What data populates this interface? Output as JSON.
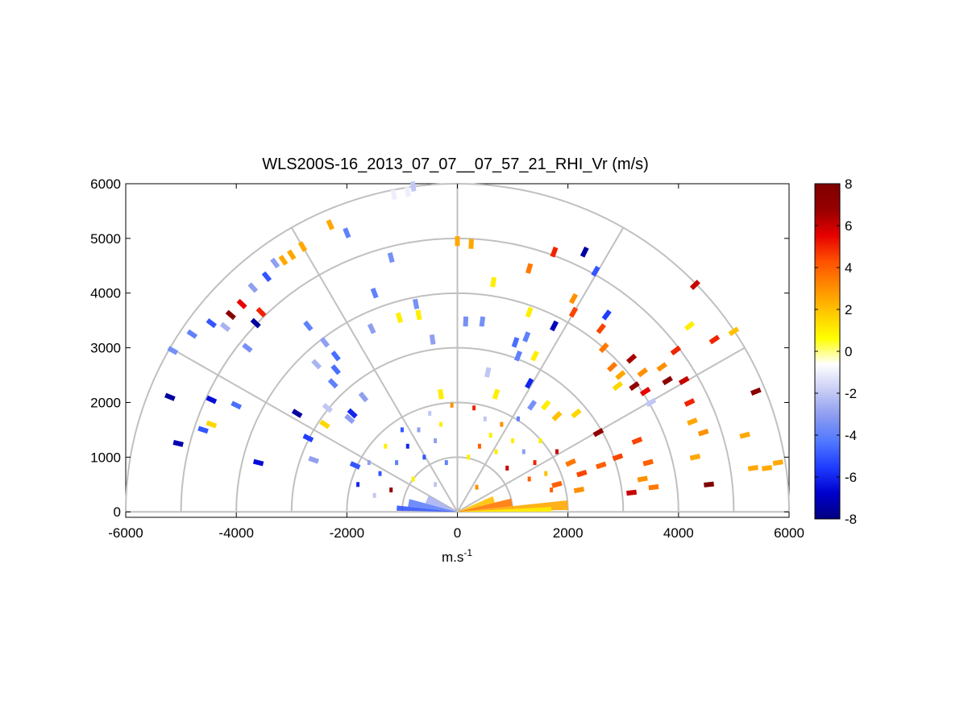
{
  "chart_data": {
    "type": "scatter",
    "title": "WLS200S-16_2013_07_07__07_57_21_RHI_Vr (m/s)",
    "xlabel_base": "m.s",
    "xlabel_sup": "-1",
    "ylabel": "",
    "xlim": [
      -6000,
      6000
    ],
    "ylim": [
      -100,
      6000
    ],
    "xticks": [
      -6000,
      -4000,
      -2000,
      0,
      2000,
      4000,
      6000
    ],
    "yticks": [
      0,
      1000,
      2000,
      3000,
      4000,
      5000,
      6000
    ],
    "range_rings": [
      1000,
      2000,
      3000,
      4000,
      5000,
      6000
    ],
    "radial_angles_deg": [
      0,
      30,
      60,
      90,
      120,
      150,
      180
    ],
    "grid": true,
    "colorbar": {
      "label": "",
      "limits": [
        -8,
        8
      ],
      "ticks": [
        -8,
        -6,
        -4,
        -2,
        0,
        2,
        4,
        6,
        8
      ],
      "colormap": [
        "#000080",
        "#0000cd",
        "#1e3cff",
        "#5078ff",
        "#8c9cf0",
        "#c8cdf5",
        "#ffffff",
        "#ffff00",
        "#ffc800",
        "#ff8c00",
        "#ff5000",
        "#e60000",
        "#960000",
        "#800000"
      ]
    },
    "points": [
      {
        "x": -5200,
        "y": 2100,
        "v": -7.5
      },
      {
        "x": -5050,
        "y": 1250,
        "v": -7.2
      },
      {
        "x": -5150,
        "y": 2950,
        "v": -3.5
      },
      {
        "x": -4800,
        "y": 3250,
        "v": -4.0
      },
      {
        "x": -4450,
        "y": 3450,
        "v": -5.0
      },
      {
        "x": -4100,
        "y": 3600,
        "v": 7.5
      },
      {
        "x": -3900,
        "y": 3800,
        "v": 5.5
      },
      {
        "x": -3700,
        "y": 4100,
        "v": -3.0
      },
      {
        "x": -3550,
        "y": 3650,
        "v": 5.0
      },
      {
        "x": -3450,
        "y": 4300,
        "v": -5.0
      },
      {
        "x": -3300,
        "y": 4550,
        "v": -3.0
      },
      {
        "x": -4200,
        "y": 3380,
        "v": -2.5
      },
      {
        "x": -4450,
        "y": 2050,
        "v": -6.5
      },
      {
        "x": -4000,
        "y": 1950,
        "v": -4.5
      },
      {
        "x": -4600,
        "y": 1500,
        "v": -5.0
      },
      {
        "x": -4450,
        "y": 1600,
        "v": 1.5
      },
      {
        "x": -3650,
        "y": 3450,
        "v": -7.5
      },
      {
        "x": -3800,
        "y": 3000,
        "v": -3.5
      },
      {
        "x": -3600,
        "y": 900,
        "v": -6.5
      },
      {
        "x": -3150,
        "y": 4600,
        "v": 2.5
      },
      {
        "x": -3000,
        "y": 4700,
        "v": 2.5
      },
      {
        "x": -2800,
        "y": 4850,
        "v": 2.5
      },
      {
        "x": -2300,
        "y": 5250,
        "v": 2.5
      },
      {
        "x": -2000,
        "y": 5100,
        "v": -4.0
      },
      {
        "x": -1150,
        "y": 5800,
        "v": -1.0
      },
      {
        "x": -900,
        "y": 5850,
        "v": -1.0
      },
      {
        "x": -800,
        "y": 5950,
        "v": -2.0
      },
      {
        "x": -1200,
        "y": 4650,
        "v": -3.5
      },
      {
        "x": -1500,
        "y": 4000,
        "v": -4.0
      },
      {
        "x": -1550,
        "y": 3350,
        "v": -3.0
      },
      {
        "x": -1050,
        "y": 3550,
        "v": 1.0
      },
      {
        "x": -750,
        "y": 3800,
        "v": -3.5
      },
      {
        "x": -450,
        "y": 3150,
        "v": -3.0
      },
      {
        "x": -2700,
        "y": 3400,
        "v": -4.0
      },
      {
        "x": -2400,
        "y": 3100,
        "v": -3.0
      },
      {
        "x": -2550,
        "y": 2700,
        "v": -2.5
      },
      {
        "x": -2200,
        "y": 2850,
        "v": -4.5
      },
      {
        "x": -2250,
        "y": 2350,
        "v": -4.0
      },
      {
        "x": -2200,
        "y": 2600,
        "v": -4.5
      },
      {
        "x": -2900,
        "y": 1800,
        "v": -7.5
      },
      {
        "x": -1900,
        "y": 1800,
        "v": -6.0
      },
      {
        "x": -1700,
        "y": 2100,
        "v": -3.0
      },
      {
        "x": -2350,
        "y": 1900,
        "v": -2.0
      },
      {
        "x": -2400,
        "y": 1600,
        "v": 1.5
      },
      {
        "x": -1950,
        "y": 1700,
        "v": -3.0
      },
      {
        "x": -2700,
        "y": 1350,
        "v": -5.5
      },
      {
        "x": -2600,
        "y": 950,
        "v": -3.0
      },
      {
        "x": -1850,
        "y": 850,
        "v": -5.0
      },
      {
        "x": 0,
        "y": 4950,
        "v": 2.5
      },
      {
        "x": 250,
        "y": 4900,
        "v": 2.5
      },
      {
        "x": 450,
        "y": 3480,
        "v": -3.5
      },
      {
        "x": 150,
        "y": 3480,
        "v": -3.5
      },
      {
        "x": -700,
        "y": 3600,
        "v": 1.0
      },
      {
        "x": -300,
        "y": 2150,
        "v": 1.0
      },
      {
        "x": 650,
        "y": 4200,
        "v": 1.0
      },
      {
        "x": 1300,
        "y": 3650,
        "v": 1.0
      },
      {
        "x": 1250,
        "y": 3200,
        "v": -4.0
      },
      {
        "x": 1050,
        "y": 3100,
        "v": -4.5
      },
      {
        "x": 1750,
        "y": 3400,
        "v": -7.0
      },
      {
        "x": 1400,
        "y": 2850,
        "v": 1.0
      },
      {
        "x": 1100,
        "y": 2850,
        "v": -4.0
      },
      {
        "x": 550,
        "y": 2550,
        "v": -2.0
      },
      {
        "x": 1300,
        "y": 2350,
        "v": -6.0
      },
      {
        "x": 700,
        "y": 2150,
        "v": 1.0
      },
      {
        "x": 1350,
        "y": 1950,
        "v": -3.5
      },
      {
        "x": 1600,
        "y": 1950,
        "v": 1.0
      },
      {
        "x": 1800,
        "y": 1750,
        "v": 2.0
      },
      {
        "x": 2150,
        "y": 1800,
        "v": 1.5
      },
      {
        "x": 2550,
        "y": 1450,
        "v": 7.0
      },
      {
        "x": 1300,
        "y": 4450,
        "v": 3.5
      },
      {
        "x": 1750,
        "y": 4750,
        "v": 5.0
      },
      {
        "x": 2300,
        "y": 4750,
        "v": -7.5
      },
      {
        "x": 2500,
        "y": 4400,
        "v": -5.0
      },
      {
        "x": 2100,
        "y": 3900,
        "v": 3.0
      },
      {
        "x": 2100,
        "y": 3650,
        "v": 4.5
      },
      {
        "x": 2700,
        "y": 3600,
        "v": -5.5
      },
      {
        "x": 2600,
        "y": 3350,
        "v": 4.5
      },
      {
        "x": 2650,
        "y": 3000,
        "v": 3.5
      },
      {
        "x": 2800,
        "y": 2650,
        "v": 3.5
      },
      {
        "x": 2950,
        "y": 2500,
        "v": 2.5
      },
      {
        "x": 2900,
        "y": 2300,
        "v": 1.5
      },
      {
        "x": 3150,
        "y": 2800,
        "v": 6.5
      },
      {
        "x": 3350,
        "y": 2550,
        "v": 3.0
      },
      {
        "x": 3400,
        "y": 2200,
        "v": 5.5
      },
      {
        "x": 3200,
        "y": 2300,
        "v": 7.0
      },
      {
        "x": 3700,
        "y": 2650,
        "v": 3.0
      },
      {
        "x": 3800,
        "y": 2400,
        "v": 7.5
      },
      {
        "x": 3950,
        "y": 2950,
        "v": 5.0
      },
      {
        "x": 4100,
        "y": 2400,
        "v": 6.0
      },
      {
        "x": 4200,
        "y": 2000,
        "v": 5.0
      },
      {
        "x": 4250,
        "y": 1650,
        "v": 2.5
      },
      {
        "x": 3500,
        "y": 2000,
        "v": -2.0
      },
      {
        "x": 4450,
        "y": 1450,
        "v": 3.0
      },
      {
        "x": 4550,
        "y": 500,
        "v": 8.0
      },
      {
        "x": 4200,
        "y": 3400,
        "v": 1.0
      },
      {
        "x": 4650,
        "y": 3150,
        "v": 5.0
      },
      {
        "x": 4300,
        "y": 4150,
        "v": 6.0
      },
      {
        "x": 5000,
        "y": 3300,
        "v": 2.0
      },
      {
        "x": 5400,
        "y": 2200,
        "v": 7.5
      },
      {
        "x": 5200,
        "y": 1400,
        "v": 2.5
      },
      {
        "x": 5350,
        "y": 800,
        "v": 2.5
      },
      {
        "x": 5600,
        "y": 800,
        "v": 2.5
      },
      {
        "x": 5800,
        "y": 900,
        "v": 2.5
      },
      {
        "x": 4300,
        "y": 1000,
        "v": 2.5
      },
      {
        "x": 3250,
        "y": 1300,
        "v": 4.5
      },
      {
        "x": 3350,
        "y": 600,
        "v": 3.0
      },
      {
        "x": 3550,
        "y": 450,
        "v": 3.5
      },
      {
        "x": 3150,
        "y": 350,
        "v": 6.0
      },
      {
        "x": 2900,
        "y": 1000,
        "v": 4.5
      },
      {
        "x": 2600,
        "y": 850,
        "v": 4.0
      },
      {
        "x": 2250,
        "y": 700,
        "v": 4.5
      },
      {
        "x": 3450,
        "y": 900,
        "v": 4.0
      },
      {
        "x": 2200,
        "y": 400,
        "v": 3.0
      },
      {
        "x": 1800,
        "y": 500,
        "v": 4.0
      },
      {
        "x": 2050,
        "y": 900,
        "v": 3.5
      }
    ]
  }
}
